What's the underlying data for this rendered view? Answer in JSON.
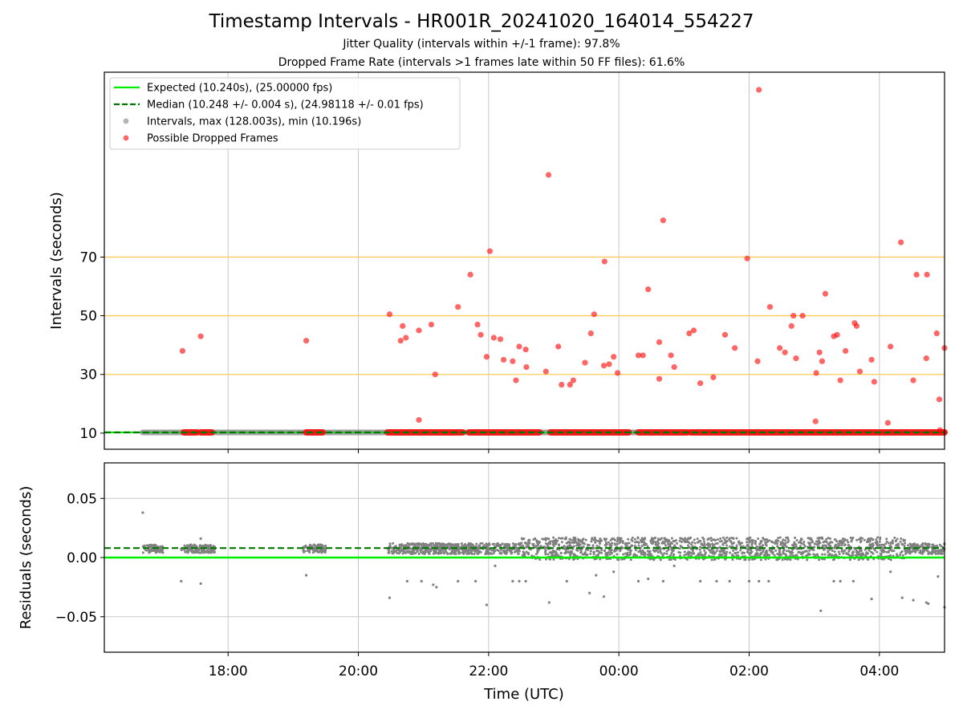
{
  "title": "Timestamp Intervals - HR001R_20241020_164014_554227",
  "subtitle_jitter": "Jitter Quality (intervals within +/-1 frame): 97.8%",
  "subtitle_dropped": "Dropped Frame Rate (intervals >1 frames late within 50 FF files): 61.6%",
  "colors": {
    "expected": "#00ee00",
    "median": "#007700",
    "intervals": "#808080",
    "dropped": "#ff0000",
    "threshold": "#ffcc55",
    "grid": "#c8c8c8"
  },
  "chart_data": [
    {
      "type": "scatter",
      "panel": "intervals",
      "ylabel": "Intervals (seconds)",
      "xlabel": "",
      "x_ticks": [
        "18:00",
        "20:00",
        "22:00",
        "00:00",
        "02:00",
        "04:00"
      ],
      "x_tick_hours": [
        18,
        20,
        22,
        24,
        26,
        28
      ],
      "x_range_hours": [
        16.1,
        29.0
      ],
      "ylim": [
        4.5,
        133
      ],
      "y_ticks": [
        10,
        30,
        50,
        70
      ],
      "threshold_lines": [
        30,
        50,
        70
      ],
      "grid": "vertical",
      "legend_position": "top-left",
      "legend": [
        {
          "kind": "line-solid",
          "label": "Expected (10.240s), (25.00000 fps)"
        },
        {
          "kind": "line-dashed",
          "label": "Median (10.248 +/- 0.004 s), (24.98118 +/- 0.01 fps)"
        },
        {
          "kind": "dot-gray",
          "label": "Intervals, max (128.003s), min (10.196s)"
        },
        {
          "kind": "dot-red",
          "label": "Possible Dropped Frames"
        }
      ],
      "expected_value": 10.24,
      "median_value": 10.248,
      "data_start_hour": 16.69,
      "baseline_dropped_ranges": [
        [
          17.32,
          17.52
        ],
        [
          17.58,
          17.75
        ],
        [
          19.2,
          19.45
        ],
        [
          20.45,
          21.6
        ],
        [
          21.7,
          22.78
        ],
        [
          22.95,
          24.15
        ],
        [
          24.3,
          25.05
        ],
        [
          25.1,
          29.0
        ]
      ],
      "dropped_points": [
        {
          "x": 17.3,
          "y": 38
        },
        {
          "x": 17.58,
          "y": 43
        },
        {
          "x": 19.2,
          "y": 41.5
        },
        {
          "x": 20.48,
          "y": 50.5
        },
        {
          "x": 20.65,
          "y": 41.5
        },
        {
          "x": 20.68,
          "y": 46.5
        },
        {
          "x": 20.73,
          "y": 42.5
        },
        {
          "x": 20.93,
          "y": 45
        },
        {
          "x": 20.93,
          "y": 14.5
        },
        {
          "x": 21.12,
          "y": 47
        },
        {
          "x": 21.18,
          "y": 30
        },
        {
          "x": 21.53,
          "y": 53
        },
        {
          "x": 21.72,
          "y": 64
        },
        {
          "x": 21.83,
          "y": 47
        },
        {
          "x": 21.88,
          "y": 43.5
        },
        {
          "x": 21.97,
          "y": 36
        },
        {
          "x": 22.02,
          "y": 72
        },
        {
          "x": 22.08,
          "y": 42.5
        },
        {
          "x": 22.18,
          "y": 42
        },
        {
          "x": 22.23,
          "y": 35
        },
        {
          "x": 22.37,
          "y": 34.5
        },
        {
          "x": 22.42,
          "y": 28
        },
        {
          "x": 22.47,
          "y": 39.5
        },
        {
          "x": 22.57,
          "y": 38.5
        },
        {
          "x": 22.58,
          "y": 32.5
        },
        {
          "x": 22.88,
          "y": 31
        },
        {
          "x": 22.92,
          "y": 98
        },
        {
          "x": 23.07,
          "y": 39.5
        },
        {
          "x": 23.12,
          "y": 26.5
        },
        {
          "x": 23.25,
          "y": 26.5
        },
        {
          "x": 23.3,
          "y": 28
        },
        {
          "x": 23.48,
          "y": 34
        },
        {
          "x": 23.57,
          "y": 44
        },
        {
          "x": 23.62,
          "y": 50.5
        },
        {
          "x": 23.77,
          "y": 33
        },
        {
          "x": 23.78,
          "y": 68.5
        },
        {
          "x": 23.85,
          "y": 33.5
        },
        {
          "x": 23.92,
          "y": 36
        },
        {
          "x": 23.98,
          "y": 30.5
        },
        {
          "x": 24.3,
          "y": 36.5
        },
        {
          "x": 24.37,
          "y": 36.5
        },
        {
          "x": 24.45,
          "y": 59
        },
        {
          "x": 24.62,
          "y": 41
        },
        {
          "x": 24.62,
          "y": 28.5
        },
        {
          "x": 24.68,
          "y": 82.5
        },
        {
          "x": 24.8,
          "y": 36.5
        },
        {
          "x": 24.85,
          "y": 32.5
        },
        {
          "x": 25.08,
          "y": 44
        },
        {
          "x": 25.15,
          "y": 45
        },
        {
          "x": 25.25,
          "y": 27
        },
        {
          "x": 25.45,
          "y": 29
        },
        {
          "x": 25.63,
          "y": 43.5
        },
        {
          "x": 25.78,
          "y": 39
        },
        {
          "x": 25.97,
          "y": 69.5
        },
        {
          "x": 26.13,
          "y": 34.5
        },
        {
          "x": 26.15,
          "y": 127
        },
        {
          "x": 26.32,
          "y": 53
        },
        {
          "x": 26.47,
          "y": 39
        },
        {
          "x": 26.55,
          "y": 37.5
        },
        {
          "x": 26.65,
          "y": 46.5
        },
        {
          "x": 26.68,
          "y": 50
        },
        {
          "x": 26.72,
          "y": 35.5
        },
        {
          "x": 26.82,
          "y": 50
        },
        {
          "x": 27.03,
          "y": 30.5
        },
        {
          "x": 27.02,
          "y": 14
        },
        {
          "x": 27.08,
          "y": 37.5
        },
        {
          "x": 27.12,
          "y": 34.5
        },
        {
          "x": 27.17,
          "y": 57.5
        },
        {
          "x": 27.3,
          "y": 43
        },
        {
          "x": 27.35,
          "y": 43.5
        },
        {
          "x": 27.4,
          "y": 28
        },
        {
          "x": 27.48,
          "y": 38
        },
        {
          "x": 27.62,
          "y": 47.5
        },
        {
          "x": 27.65,
          "y": 46.5
        },
        {
          "x": 27.7,
          "y": 31
        },
        {
          "x": 27.88,
          "y": 35
        },
        {
          "x": 27.92,
          "y": 27.5
        },
        {
          "x": 28.13,
          "y": 13.5
        },
        {
          "x": 28.17,
          "y": 39.5
        },
        {
          "x": 28.33,
          "y": 75
        },
        {
          "x": 28.52,
          "y": 28
        },
        {
          "x": 28.57,
          "y": 64
        },
        {
          "x": 28.72,
          "y": 35.5
        },
        {
          "x": 28.73,
          "y": 64
        },
        {
          "x": 28.88,
          "y": 44
        },
        {
          "x": 28.92,
          "y": 21.5
        },
        {
          "x": 28.93,
          "y": 11
        },
        {
          "x": 29.0,
          "y": 39
        }
      ]
    },
    {
      "type": "scatter",
      "panel": "residuals",
      "ylabel": "Residuals (seconds)",
      "xlabel": "Time (UTC)",
      "x_ticks": [
        "18:00",
        "20:00",
        "22:00",
        "00:00",
        "02:00",
        "04:00"
      ],
      "x_tick_hours": [
        18,
        20,
        22,
        24,
        26,
        28
      ],
      "x_range_hours": [
        16.1,
        29.0
      ],
      "ylim": [
        -0.08,
        0.08
      ],
      "y_ticks": [
        0.05,
        0.0,
        -0.05
      ],
      "y_tick_labels": [
        "0.05",
        "0.00",
        "−0.05"
      ],
      "grid": "both",
      "expected_residual": 0.0,
      "median_residual": 0.008,
      "dense_band_ranges": [
        [
          16.69,
          17.0,
          0.004,
          0.011
        ],
        [
          17.28,
          17.8,
          0.004,
          0.011
        ],
        [
          19.15,
          19.5,
          0.004,
          0.011
        ],
        [
          20.45,
          22.5,
          0.003,
          0.012
        ],
        [
          22.5,
          28.4,
          -0.002,
          0.017
        ],
        [
          28.4,
          29.0,
          0.003,
          0.012
        ]
      ],
      "outlier_points": [
        {
          "x": 16.69,
          "y": 0.038
        },
        {
          "x": 17.28,
          "y": -0.02
        },
        {
          "x": 17.58,
          "y": -0.022
        },
        {
          "x": 17.58,
          "y": 0.016
        },
        {
          "x": 19.2,
          "y": -0.015
        },
        {
          "x": 20.48,
          "y": -0.034
        },
        {
          "x": 20.75,
          "y": -0.02
        },
        {
          "x": 20.97,
          "y": -0.02
        },
        {
          "x": 21.15,
          "y": -0.023
        },
        {
          "x": 21.2,
          "y": -0.025
        },
        {
          "x": 21.53,
          "y": -0.02
        },
        {
          "x": 21.8,
          "y": -0.02
        },
        {
          "x": 21.97,
          "y": -0.04
        },
        {
          "x": 22.1,
          "y": -0.007
        },
        {
          "x": 22.37,
          "y": -0.02
        },
        {
          "x": 22.47,
          "y": -0.02
        },
        {
          "x": 22.57,
          "y": -0.02
        },
        {
          "x": 22.93,
          "y": -0.038
        },
        {
          "x": 23.2,
          "y": -0.02
        },
        {
          "x": 23.55,
          "y": -0.03
        },
        {
          "x": 23.65,
          "y": -0.015
        },
        {
          "x": 23.77,
          "y": -0.033
        },
        {
          "x": 23.92,
          "y": -0.012
        },
        {
          "x": 24.3,
          "y": -0.02
        },
        {
          "x": 24.45,
          "y": -0.018
        },
        {
          "x": 24.68,
          "y": -0.02
        },
        {
          "x": 24.85,
          "y": -0.007
        },
        {
          "x": 25.25,
          "y": -0.02
        },
        {
          "x": 25.5,
          "y": -0.02
        },
        {
          "x": 25.7,
          "y": -0.02
        },
        {
          "x": 26.0,
          "y": -0.02
        },
        {
          "x": 26.15,
          "y": -0.02
        },
        {
          "x": 26.3,
          "y": -0.02
        },
        {
          "x": 27.1,
          "y": -0.045
        },
        {
          "x": 27.3,
          "y": -0.02
        },
        {
          "x": 27.4,
          "y": -0.02
        },
        {
          "x": 27.6,
          "y": -0.02
        },
        {
          "x": 27.88,
          "y": -0.035
        },
        {
          "x": 28.17,
          "y": -0.012
        },
        {
          "x": 28.35,
          "y": -0.034
        },
        {
          "x": 28.52,
          "y": -0.036
        },
        {
          "x": 28.72,
          "y": -0.038
        },
        {
          "x": 28.75,
          "y": -0.039
        },
        {
          "x": 28.9,
          "y": -0.016
        },
        {
          "x": 29.0,
          "y": -0.042
        }
      ]
    }
  ]
}
